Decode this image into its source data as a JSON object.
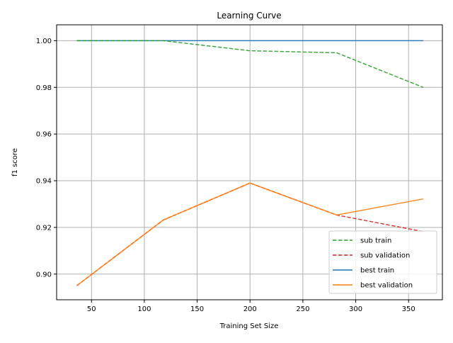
{
  "chart_data": {
    "type": "line",
    "title": "Learning Curve",
    "xlabel": "Training Set Size",
    "ylabel": "f1 score",
    "xlim": [
      17,
      382
    ],
    "ylim": [
      0.889,
      1.0068
    ],
    "xticks": [
      50,
      100,
      150,
      200,
      250,
      300,
      350
    ],
    "yticks": [
      0.9,
      0.92,
      0.94,
      0.96,
      0.98,
      1.0
    ],
    "xtick_labels": [
      "50",
      "100",
      "150",
      "200",
      "250",
      "300",
      "350"
    ],
    "ytick_labels": [
      "0.90",
      "0.92",
      "0.94",
      "0.96",
      "0.98",
      "1.00"
    ],
    "grid": true,
    "legend_position": "lower right",
    "series": [
      {
        "name": "sub train",
        "x": [
          36,
          118,
          200,
          282,
          364
        ],
        "y": [
          1.0,
          1.0,
          0.9957,
          0.9948,
          0.98
        ],
        "color": "#2ca02c",
        "dash": "dashed"
      },
      {
        "name": "sub validation",
        "x": [
          36,
          118,
          200,
          282,
          364
        ],
        "y": [
          0.895,
          0.9232,
          0.939,
          0.9253,
          0.9182
        ],
        "color": "#d62728",
        "dash": "dashed"
      },
      {
        "name": "best train",
        "x": [
          36,
          118,
          200,
          282,
          364
        ],
        "y": [
          1.0,
          1.0,
          1.0,
          1.0,
          1.0
        ],
        "color": "#1f77b4",
        "dash": "solid"
      },
      {
        "name": "best validation",
        "x": [
          36,
          118,
          200,
          282,
          364
        ],
        "y": [
          0.895,
          0.9232,
          0.939,
          0.9253,
          0.9322
        ],
        "color": "#ff7f0e",
        "dash": "solid"
      }
    ]
  }
}
